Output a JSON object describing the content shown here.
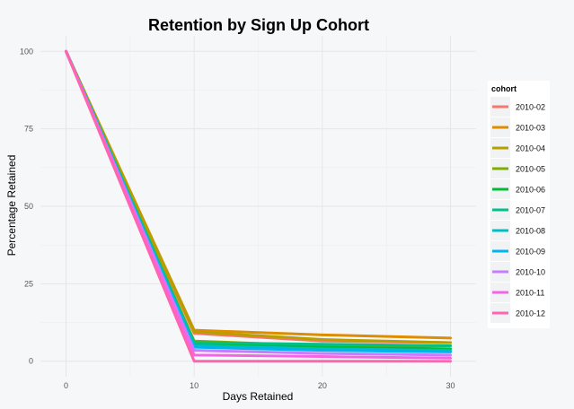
{
  "chart_data": {
    "type": "line",
    "title": "Retention by Sign Up Cohort",
    "xlabel": "Days Retained",
    "ylabel": "Percentage Retained",
    "x": [
      0,
      10,
      20,
      30
    ],
    "xlim": [
      -2,
      32
    ],
    "ylim": [
      -5,
      105
    ],
    "xticks": [
      0,
      10,
      20,
      30
    ],
    "yticks": [
      0,
      25,
      50,
      75,
      100
    ],
    "grid": true,
    "legend": {
      "title": "cohort",
      "position": "right"
    },
    "series": [
      {
        "name": "2010-02",
        "color": "#f8766d",
        "values": [
          100,
          9.0,
          6.5,
          6.0
        ]
      },
      {
        "name": "2010-03",
        "color": "#de8c00",
        "values": [
          100,
          10.0,
          8.5,
          7.5
        ]
      },
      {
        "name": "2010-04",
        "color": "#b79f00",
        "values": [
          100,
          9.5,
          7.0,
          6.0
        ]
      },
      {
        "name": "2010-05",
        "color": "#7cae00",
        "values": [
          100,
          6.5,
          5.0,
          5.0
        ]
      },
      {
        "name": "2010-06",
        "color": "#00ba38",
        "values": [
          100,
          5.5,
          4.5,
          4.0
        ]
      },
      {
        "name": "2010-07",
        "color": "#00c08b",
        "values": [
          100,
          6.0,
          5.5,
          5.0
        ]
      },
      {
        "name": "2010-08",
        "color": "#00bfc4",
        "values": [
          100,
          5.0,
          4.0,
          3.5
        ]
      },
      {
        "name": "2010-09",
        "color": "#00b4f0",
        "values": [
          100,
          4.5,
          3.5,
          3.0
        ]
      },
      {
        "name": "2010-10",
        "color": "#c77cff",
        "values": [
          100,
          3.5,
          2.5,
          2.0
        ]
      },
      {
        "name": "2010-11",
        "color": "#f564e3",
        "values": [
          100,
          2.0,
          1.5,
          1.0
        ]
      },
      {
        "name": "2010-12",
        "color": "#ff64b0",
        "values": [
          100,
          0.0,
          0.0,
          0.0
        ]
      }
    ]
  }
}
